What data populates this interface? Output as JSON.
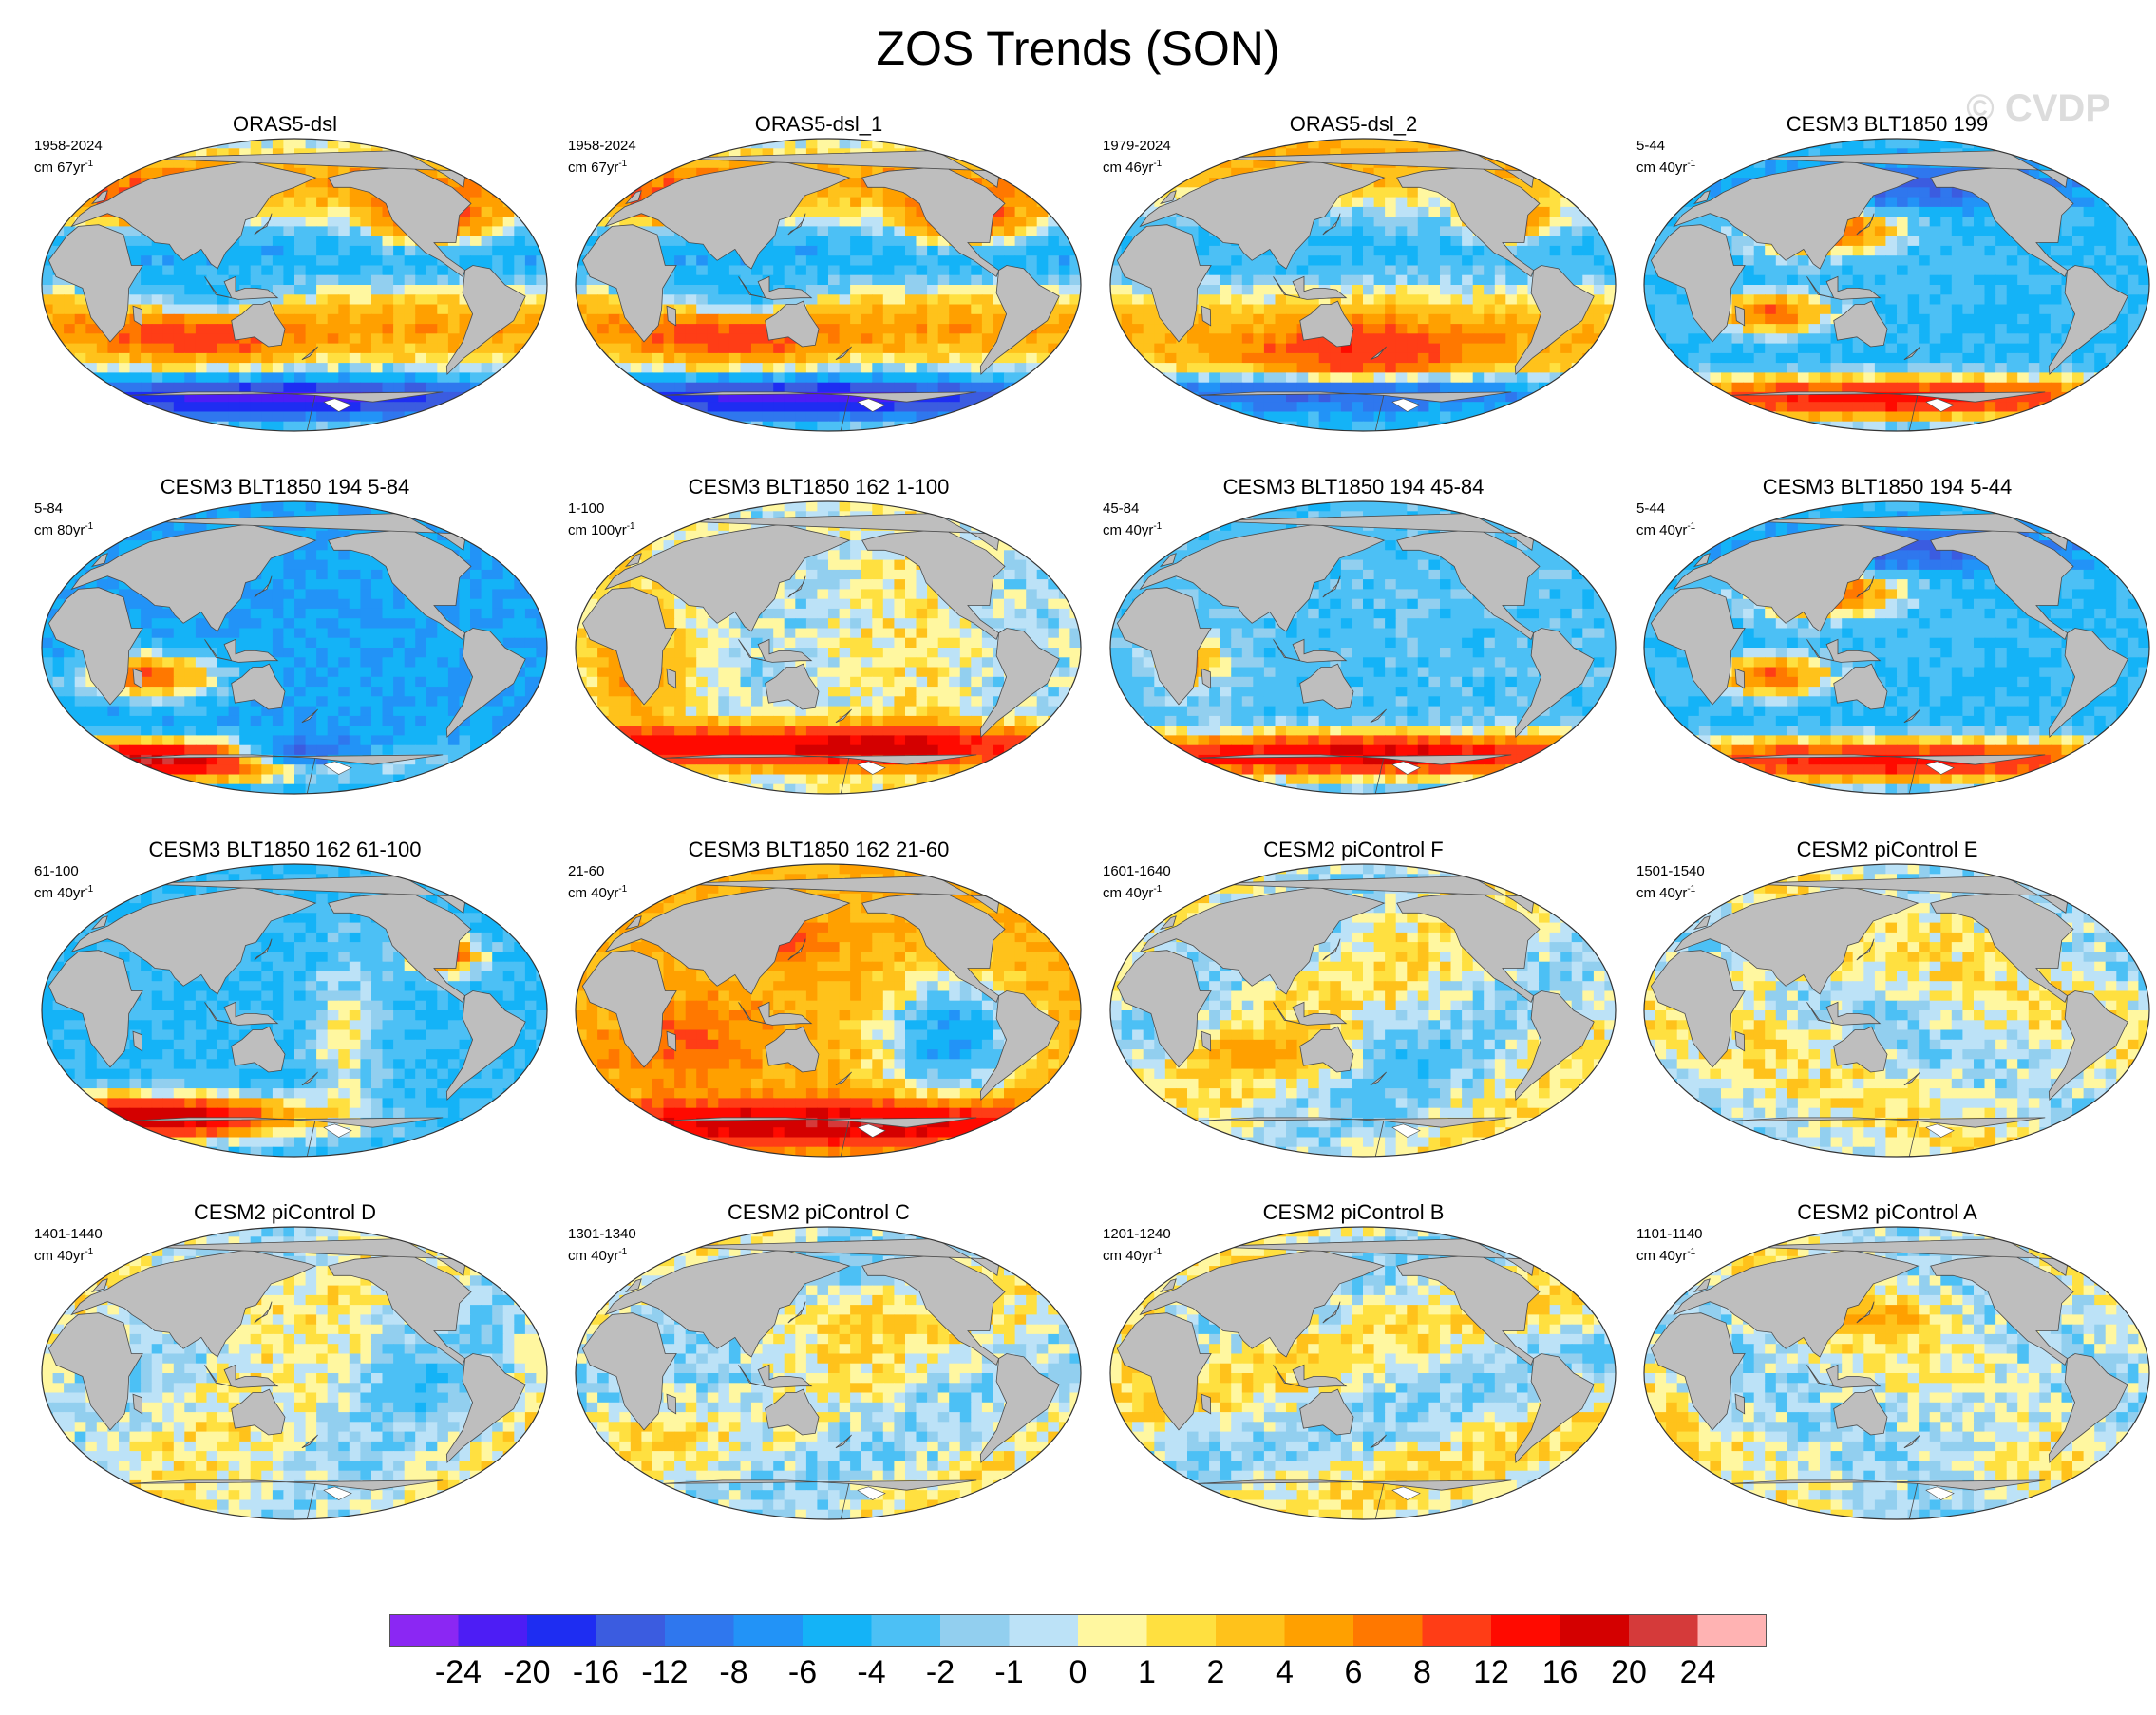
{
  "title": "ZOS Trends (SON)",
  "watermark": "© CVDP",
  "chart_data": {
    "type": "heatmap",
    "title": "ZOS Trends (SON)",
    "projection": "Robinson-like global map, Pacific-centered",
    "units": "cm",
    "panels": [
      {
        "title": "ORAS5-dsl",
        "period": "1958-2024",
        "units_line": "cm 67yr",
        "pattern": 0
      },
      {
        "title": "ORAS5-dsl_1",
        "period": "1958-2024",
        "units_line": "cm 67yr",
        "pattern": 0
      },
      {
        "title": "ORAS5-dsl_2",
        "period": "1979-2024",
        "units_line": "cm 46yr",
        "pattern": 1
      },
      {
        "title": "CESM3 BLT1850 199",
        "period": "5-44",
        "units_line": "cm 40yr",
        "pattern": 2
      },
      {
        "title": "CESM3 BLT1850 194 5-84",
        "period": "5-84",
        "units_line": "cm 80yr",
        "pattern": 3
      },
      {
        "title": "CESM3 BLT1850 162 1-100",
        "period": "1-100",
        "units_line": "cm 100yr",
        "pattern": 4
      },
      {
        "title": "CESM3 BLT1850 194 45-84",
        "period": "45-84",
        "units_line": "cm 40yr",
        "pattern": 5
      },
      {
        "title": "CESM3 BLT1850 194 5-44",
        "period": "5-44",
        "units_line": "cm 40yr",
        "pattern": 2
      },
      {
        "title": "CESM3 BLT1850 162 61-100",
        "period": "61-100",
        "units_line": "cm 40yr",
        "pattern": 6
      },
      {
        "title": "CESM3 BLT1850 162 21-60",
        "period": "21-60",
        "units_line": "cm 40yr",
        "pattern": 7
      },
      {
        "title": "CESM2 piControl F",
        "period": "1601-1640",
        "units_line": "cm 40yr",
        "pattern": 8
      },
      {
        "title": "CESM2 piControl E",
        "period": "1501-1540",
        "units_line": "cm 40yr",
        "pattern": 9
      },
      {
        "title": "CESM2 piControl D",
        "period": "1401-1440",
        "units_line": "cm 40yr",
        "pattern": 10
      },
      {
        "title": "CESM2 piControl C",
        "period": "1301-1340",
        "units_line": "cm 40yr",
        "pattern": 11
      },
      {
        "title": "CESM2 piControl B",
        "period": "1201-1240",
        "units_line": "cm 40yr",
        "pattern": 12
      },
      {
        "title": "CESM2 piControl A",
        "period": "1101-1140",
        "units_line": "cm 40yr",
        "pattern": 13
      }
    ],
    "unit_superscript": "-1",
    "colorbar": {
      "labels": [
        "-24",
        "-20",
        "-16",
        "-12",
        "-8",
        "-6",
        "-4",
        "-2",
        "-1",
        "0",
        "1",
        "2",
        "4",
        "6",
        "8",
        "12",
        "16",
        "20",
        "24"
      ],
      "colors": [
        "#8B27F3",
        "#4D1DF5",
        "#1E2DF2",
        "#3B5CE0",
        "#2F77EE",
        "#2293F7",
        "#14B3F7",
        "#4CC0F5",
        "#92CFEF",
        "#BCE2F7",
        "#FFF7A0",
        "#FFE040",
        "#FFC21B",
        "#FFA000",
        "#FF7800",
        "#FF3D16",
        "#FF0A00",
        "#D40000",
        "#D53A3A",
        "#FFB3B3"
      ]
    },
    "colors": {
      "land": "#bebebe",
      "coast": "#4a4a4a",
      "antarctic_ice": "#ffffff"
    }
  }
}
